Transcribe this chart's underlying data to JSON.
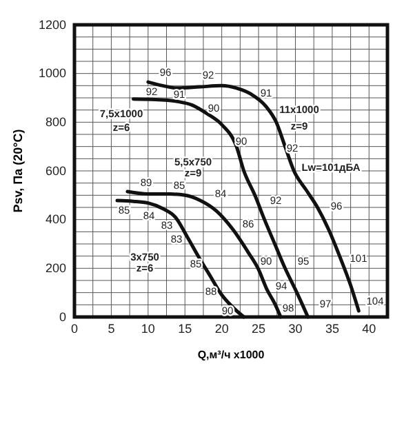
{
  "chart_data": {
    "type": "line",
    "xlabel": "Q,м³/ч x1000",
    "ylabel": "Psv, Па (20°C)",
    "xlim": [
      0,
      42.5
    ],
    "ylim": [
      0,
      1200
    ],
    "xticks": [
      0,
      {
        "value": 2.5,
        "label": null
      },
      5,
      {
        "value": 7.5,
        "label": null
      },
      10,
      {
        "value": 12.5,
        "label": null
      },
      15,
      {
        "value": 17.5,
        "label": null
      },
      20,
      {
        "value": 22.5,
        "label": null
      },
      25,
      {
        "value": 27.5,
        "label": null
      },
      30,
      {
        "value": 32.5,
        "label": null
      },
      35,
      {
        "value": 37.5,
        "label": null
      },
      40,
      {
        "value": 42.5,
        "label": null
      }
    ],
    "yticks": [
      0,
      {
        "value": 50,
        "label": null
      },
      {
        "value": 100,
        "label": null
      },
      {
        "value": 150,
        "label": null
      },
      200,
      {
        "value": 250,
        "label": null
      },
      {
        "value": 300,
        "label": null
      },
      {
        "value": 350,
        "label": null
      },
      400,
      {
        "value": 450,
        "label": null
      },
      {
        "value": 500,
        "label": null
      },
      {
        "value": 550,
        "label": null
      },
      600,
      {
        "value": 650,
        "label": null
      },
      {
        "value": 700,
        "label": null
      },
      {
        "value": 750,
        "label": null
      },
      800,
      {
        "value": 850,
        "label": null
      },
      {
        "value": 900,
        "label": null
      },
      {
        "value": 950,
        "label": null
      },
      1000,
      {
        "value": 1050,
        "label": null
      },
      {
        "value": 1100,
        "label": null
      },
      {
        "value": 1150,
        "label": null
      },
      1200
    ],
    "grid": true,
    "marker": "none",
    "line_style": "solid",
    "series": [
      {
        "color": "#111111",
        "x": [
          10,
          12,
          14,
          17,
          20,
          22,
          24,
          26,
          27.4,
          28.6,
          29.8,
          31.5,
          33,
          34.5,
          36,
          37.5,
          38.6
        ],
        "values": [
          965,
          950,
          940,
          945,
          950,
          940,
          915,
          865,
          800,
          700,
          600,
          520,
          450,
          360,
          250,
          130,
          25
        ]
      },
      {
        "color": "#111111",
        "x": [
          8,
          11,
          14,
          16,
          18,
          20,
          22,
          23,
          24.5,
          25.8,
          27.2,
          28.6,
          30.2,
          31.7
        ],
        "values": [
          895,
          893,
          885,
          870,
          835,
          790,
          700,
          600,
          500,
          400,
          300,
          200,
          100,
          0
        ]
      },
      {
        "color": "#111111",
        "x": [
          7.2,
          10,
          13,
          15,
          17,
          19.3,
          21.5,
          23.6,
          25,
          26.1,
          27.2,
          28
        ],
        "values": [
          515,
          505,
          505,
          500,
          480,
          435,
          360,
          265,
          195,
          115,
          55,
          0
        ]
      },
      {
        "color": "#111111",
        "x": [
          5.8,
          8,
          10,
          12,
          13.7,
          15.3,
          16.9,
          18.5,
          19.9,
          21.5,
          23
        ],
        "values": [
          478,
          475,
          468,
          445,
          410,
          330,
          245,
          165,
          95,
          40,
          0
        ]
      }
    ],
    "annotations": [
      "96",
      "92",
      "92",
      "91",
      "91",
      "90",
      "90",
      "92",
      "11x1000",
      "z=9",
      "7,5x1000",
      "z=6",
      "5,5x750",
      "z=9",
      "Lw=101дБА",
      "89",
      "85",
      "84",
      "92",
      "96",
      "85",
      "84",
      "83",
      "83",
      "86",
      "90",
      "95",
      "101",
      "3x750",
      "z=6",
      "85",
      "88",
      "94",
      "90",
      "98",
      "97",
      "104"
    ]
  }
}
